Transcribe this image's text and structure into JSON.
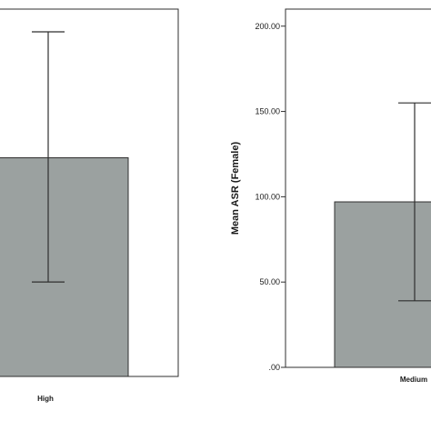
{
  "chart_data": [
    {
      "type": "bar",
      "panel": "left",
      "categories": [
        "High"
      ],
      "values": [
        125
      ],
      "error_bars": [
        {
          "upper": 197,
          "lower": 54
        }
      ],
      "ylim": [
        0,
        210
      ],
      "yticks": [],
      "xlabel": "",
      "ylabel": "",
      "title": "",
      "grid": false,
      "colors": {
        "bar": "#9ba1a0",
        "bar_edge": "#2f2f2f",
        "error_bar": "#2f2f2f"
      }
    },
    {
      "type": "bar",
      "panel": "right",
      "categories": [
        "Medium"
      ],
      "values": [
        97
      ],
      "error_bars": [
        {
          "upper": 155,
          "lower": 39
        }
      ],
      "ylim": [
        0,
        210
      ],
      "yticks": [
        {
          "value": 0,
          "label": ".00"
        },
        {
          "value": 50,
          "label": "50.00"
        },
        {
          "value": 100,
          "label": "100.00"
        },
        {
          "value": 150,
          "label": "150.00"
        },
        {
          "value": 200,
          "label": "200.00"
        }
      ],
      "xlabel": "",
      "ylabel": "Mean ASR (Female)",
      "title": "",
      "grid": false,
      "colors": {
        "bar": "#9ba1a0",
        "bar_edge": "#2f2f2f",
        "error_bar": "#2f2f2f"
      }
    }
  ]
}
